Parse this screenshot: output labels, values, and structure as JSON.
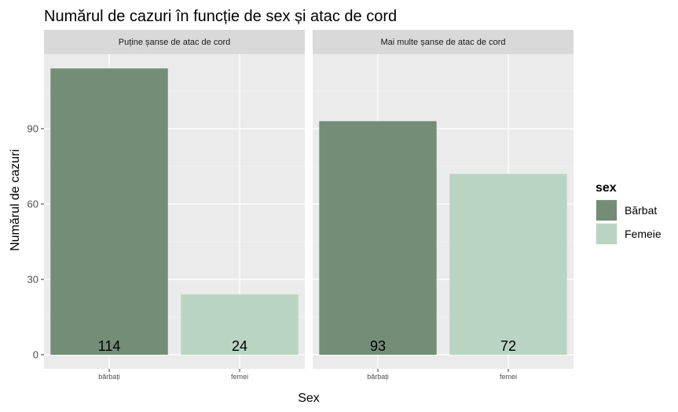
{
  "chart_data": {
    "type": "bar",
    "title": "Numărul de cazuri în funcție de sex și atac de cord",
    "xlabel": "Sex",
    "ylabel": "Numărul de cazuri",
    "ylim": [
      0,
      120
    ],
    "yticks": [
      0,
      30,
      60,
      90
    ],
    "grid": true,
    "legend": {
      "title": "sex",
      "position": "right",
      "entries": [
        {
          "label": "Bărbat",
          "color": "#738d76"
        },
        {
          "label": "Femeie",
          "color": "#b9d4c3"
        }
      ]
    },
    "facets": [
      {
        "label": "Puține șanse de atac de cord",
        "categories": [
          "bărbați",
          "femei"
        ],
        "values": [
          114,
          24
        ],
        "colors": [
          "#738d76",
          "#b9d4c3"
        ]
      },
      {
        "label": "Mai multe șanse de atac de cord",
        "categories": [
          "bărbați",
          "femei"
        ],
        "values": [
          93,
          72
        ],
        "colors": [
          "#738d76",
          "#b9d4c3"
        ]
      }
    ]
  }
}
